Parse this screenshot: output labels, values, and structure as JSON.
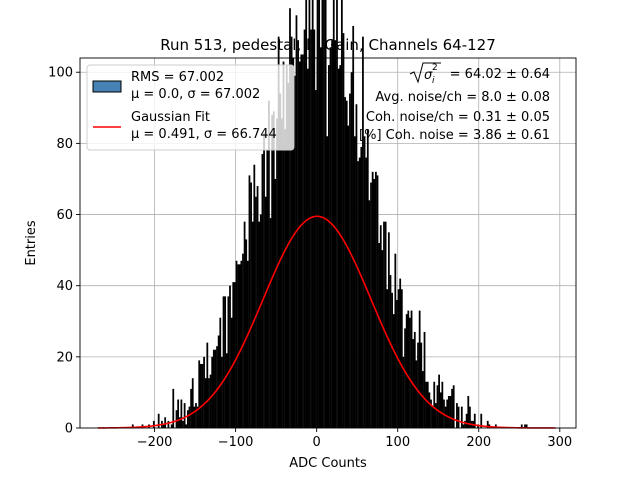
{
  "chart_data": {
    "type": "histogram",
    "title": "Run 513, pedestal, hi Gain, Channels 64-127",
    "xlabel": "ADC Counts",
    "ylabel": "Entries",
    "xlim": [
      -292,
      320
    ],
    "ylim": [
      0,
      104
    ],
    "xticks": [
      -200,
      -100,
      0,
      100,
      200,
      300
    ],
    "xtick_labels": [
      "−200",
      "−100",
      "0",
      "100",
      "200",
      "300"
    ],
    "yticks": [
      0,
      20,
      40,
      60,
      80,
      100
    ],
    "ytick_labels": [
      "0",
      "20",
      "40",
      "60",
      "80",
      "100"
    ],
    "grid": true,
    "histogram": {
      "bin_width": 2,
      "range": [
        -270,
        295
      ],
      "total_entries": 10000,
      "mean": 0.0,
      "sigma": 67.002,
      "color": "#000000"
    },
    "series": [
      {
        "name": "RMS = 67.002",
        "line2": "μ = 0.0, σ = 67.002",
        "kind": "histogram",
        "color": "#4682b4"
      },
      {
        "name": "Gaussian Fit",
        "line2": "μ = 0.491, σ = 66.744",
        "kind": "line",
        "mu": 0.491,
        "sigma": 66.744,
        "amplitude": 59.5,
        "color": "#ff0000"
      }
    ],
    "legend_position": "top-left",
    "annotations": {
      "sigma_prefix": "σ",
      "sigma_sub": "i",
      "sigma_sup": "2",
      "sigma_value": " = 64.02 ± 0.64",
      "avg_noise": "Avg. noise/ch = 8.0 ± 0.08",
      "coh_noise": "Coh. noise/ch = 0.31 ± 0.05",
      "coh_pct": "[%] Coh. noise = 3.86 ± 0.61"
    },
    "colors": {
      "grid": "#b0b0b0",
      "fit": "#ff0000",
      "hist": "#000000",
      "legend_patch": "#4682b4"
    }
  }
}
